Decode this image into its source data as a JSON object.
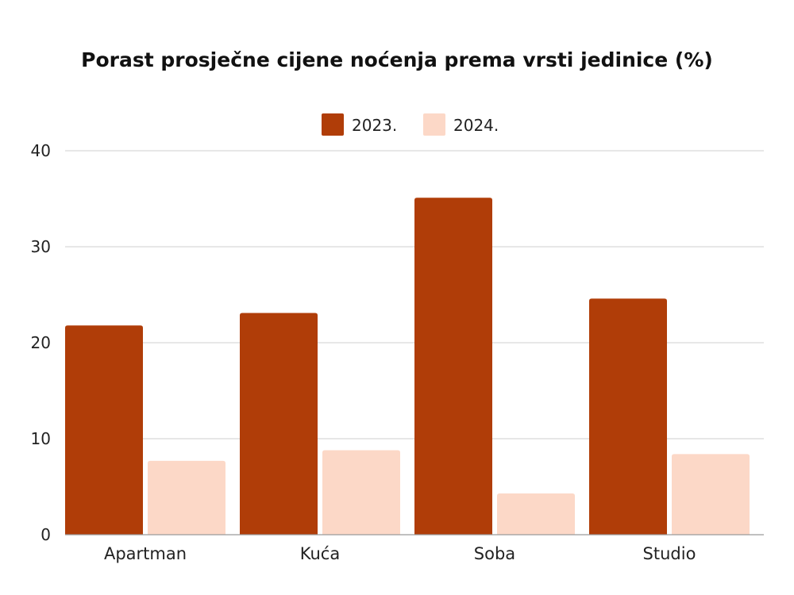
{
  "chart_data": {
    "type": "bar",
    "title": "Porast prosječne cijene noćenja prema vrsti jedinice (%)",
    "categories": [
      "Apartman",
      "Kuća",
      "Soba",
      "Studio"
    ],
    "series": [
      {
        "name": "2023.",
        "values": [
          21.8,
          23.1,
          35.1,
          24.6
        ],
        "color": "#b03d08"
      },
      {
        "name": "2024.",
        "values": [
          7.7,
          8.8,
          4.3,
          8.4
        ],
        "color": "#fcd8c7"
      }
    ],
    "xlabel": "",
    "ylabel": "",
    "ylim": [
      0,
      40
    ],
    "yticks": [
      "0",
      "10",
      "20",
      "30",
      "40"
    ],
    "grid": true,
    "legend_position": "top-center"
  }
}
